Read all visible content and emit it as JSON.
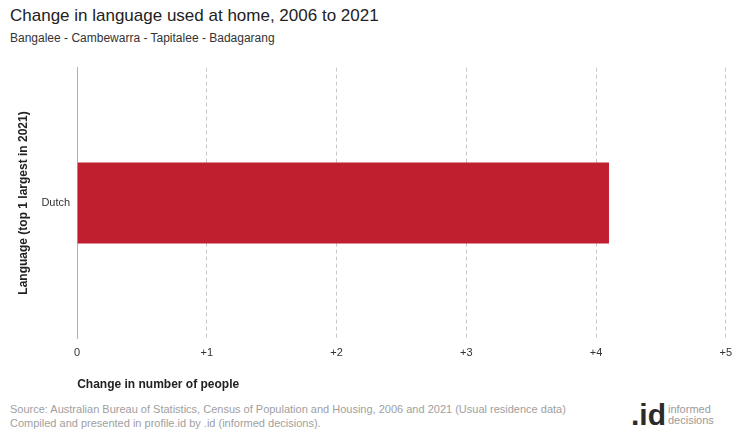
{
  "chart_data": {
    "type": "bar",
    "orientation": "horizontal",
    "title": "Change in language used at home, 2006 to 2021",
    "subtitle": "Bangalee - Cambewarra - Tapitalee - Badagarang",
    "x_label": "Change in number of people",
    "y_label": "Language (top 1 largest in 2021)",
    "categories": [
      "Dutch"
    ],
    "values": [
      4.1
    ],
    "color": "#c01f2f",
    "xlim": [
      0,
      5
    ],
    "xticks": [
      0,
      {
        "value": 1,
        "label": "+1"
      },
      {
        "value": 2,
        "label": "+2"
      },
      {
        "value": 3,
        "label": "+3"
      },
      {
        "value": 4,
        "label": "+4"
      },
      {
        "value": 5,
        "label": "+5"
      }
    ],
    "grid": true,
    "source": [
      "Source: Australian Bureau of Statistics, Census of Population and Housing, 2006 and 2021 (Usual residence data)",
      "Compiled and presented in profile.id by .id (informed decisions)."
    ],
    "logo": {
      "mark": ".id",
      "text": "informed decisions"
    }
  }
}
